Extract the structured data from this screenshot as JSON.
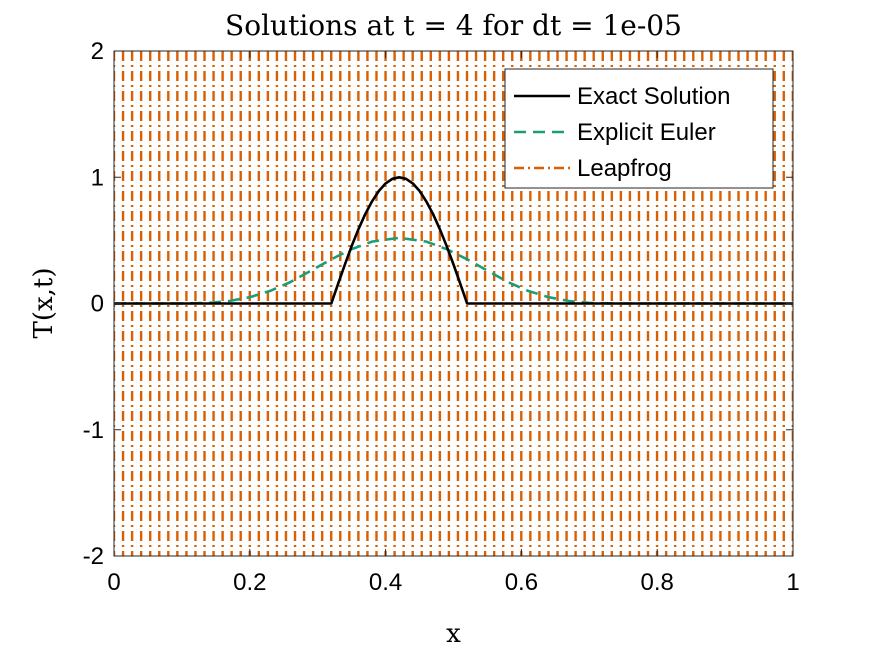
{
  "chart_data": {
    "type": "line",
    "title": "Solutions at t = 4 for dt = 1e-05",
    "xlabel": "x",
    "ylabel": "T(x,t)",
    "xlim": [
      0,
      1
    ],
    "ylim": [
      -2,
      2
    ],
    "xticks": [
      0,
      0.2,
      0.4,
      0.6,
      0.8,
      1
    ],
    "xtick_labels": [
      "0",
      "0.2",
      "0.4",
      "0.6",
      "0.8",
      "1"
    ],
    "yticks": [
      -2,
      -1,
      0,
      1,
      2
    ],
    "ytick_labels": [
      "-2",
      "-1",
      "0",
      "1",
      "2"
    ],
    "grid": false,
    "legend_position": "top-right",
    "series": [
      {
        "name": "Exact Solution",
        "color": "#000000",
        "style": "solid",
        "x": [
          0,
          0.32,
          0.33,
          0.34,
          0.35,
          0.36,
          0.37,
          0.38,
          0.39,
          0.4,
          0.41,
          0.42,
          0.43,
          0.44,
          0.45,
          0.46,
          0.47,
          0.48,
          0.49,
          0.5,
          0.51,
          0.52,
          1
        ],
        "y": [
          0,
          0,
          0.156,
          0.309,
          0.454,
          0.588,
          0.707,
          0.809,
          0.891,
          0.951,
          0.988,
          1.0,
          0.988,
          0.951,
          0.891,
          0.809,
          0.707,
          0.588,
          0.454,
          0.309,
          0.156,
          0,
          0
        ]
      },
      {
        "name": "Explicit Euler",
        "color": "#1b9e77",
        "style": "dashed",
        "x": [
          0,
          0.1,
          0.14,
          0.17,
          0.2,
          0.23,
          0.26,
          0.29,
          0.32,
          0.35,
          0.38,
          0.42,
          0.46,
          0.49,
          0.52,
          0.55,
          0.58,
          0.61,
          0.64,
          0.67,
          0.7,
          0.74,
          1
        ],
        "y": [
          0,
          0,
          0.005,
          0.02,
          0.05,
          0.1,
          0.17,
          0.26,
          0.35,
          0.43,
          0.49,
          0.52,
          0.49,
          0.43,
          0.35,
          0.26,
          0.17,
          0.1,
          0.05,
          0.02,
          0.005,
          0,
          0
        ]
      },
      {
        "name": "Leapfrog",
        "color": "#d95f02",
        "style": "dash-dot",
        "x_start": 0,
        "x_step": 0.01333,
        "count": 76,
        "y_range": [
          -2,
          2
        ]
      }
    ]
  }
}
